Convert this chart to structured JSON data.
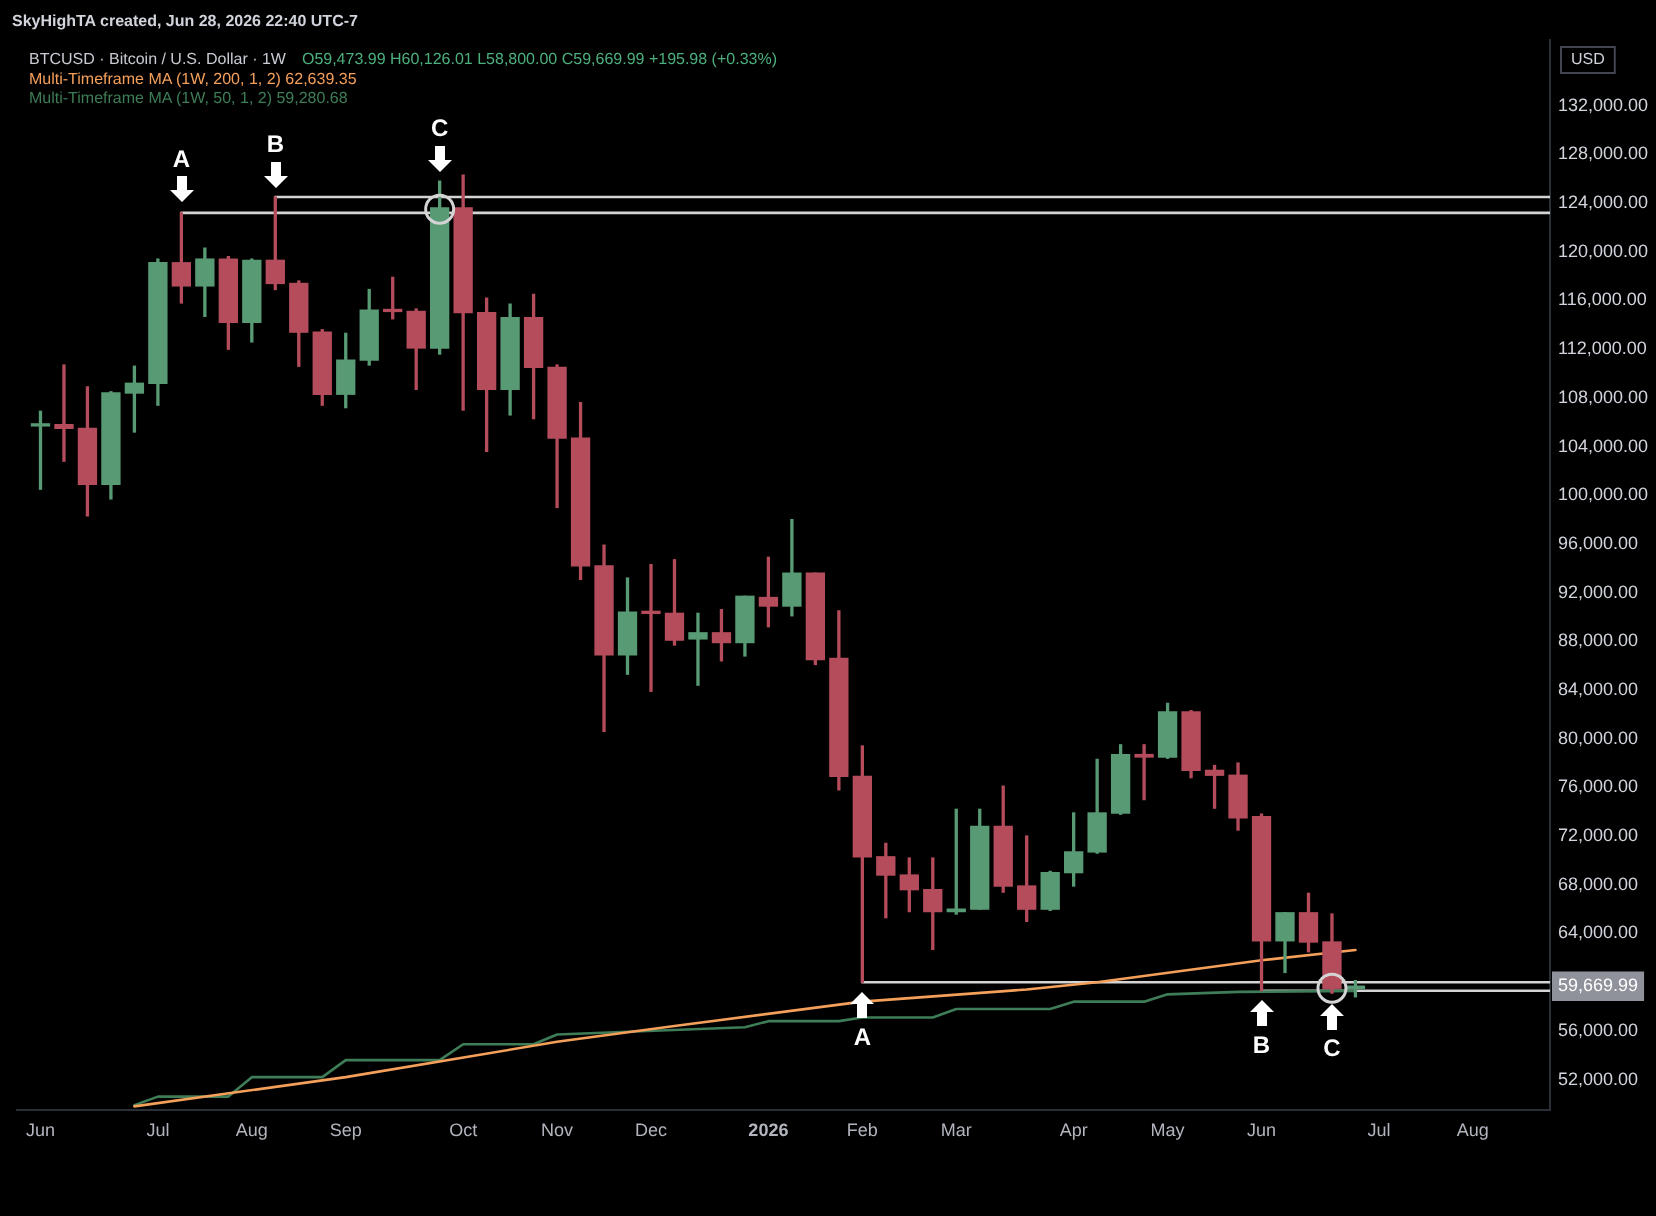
{
  "chart_data": {
    "type": "candlestick",
    "title": "BTCUSD · Bitcoin / U.S. Dollar · 1W",
    "subtitle": "O59,473.99 H60,126.01 L58,800.00 C59,669.99 +195.98 (+0.33%)",
    "ylabel": "USD",
    "annotations": [
      "SkyHighTA created, Jun 28, 2026 22:40 UTC-7",
      {
        "text": "A",
        "x": "2025-07-14",
        "y": 123200
      },
      {
        "text": "B",
        "x": "2025-08-11",
        "y": 124500
      },
      {
        "text": "C",
        "x": "2025-09-29",
        "y": 125800
      },
      {
        "text": "A",
        "x": "2026-02-02",
        "y": 60000
      },
      {
        "text": "B",
        "x": "2026-06-01",
        "y": 59300
      },
      {
        "text": "C",
        "x": "2026-06-22",
        "y": 59100
      }
    ],
    "x": [
      "2025-06-02",
      "2025-06-09",
      "2025-06-16",
      "2025-06-23",
      "2025-06-30",
      "2025-07-07",
      "2025-07-14",
      "2025-07-21",
      "2025-07-28",
      "2025-08-04",
      "2025-08-11",
      "2025-08-18",
      "2025-08-25",
      "2025-09-01",
      "2025-09-08",
      "2025-09-15",
      "2025-09-22",
      "2025-09-29",
      "2025-10-06",
      "2025-10-13",
      "2025-10-20",
      "2025-10-27",
      "2025-11-03",
      "2025-11-10",
      "2025-11-17",
      "2025-11-24",
      "2025-12-01",
      "2025-12-08",
      "2025-12-15",
      "2025-12-22",
      "2025-12-29",
      "2026-01-05",
      "2026-01-12",
      "2026-01-19",
      "2026-01-26",
      "2026-02-02",
      "2026-02-09",
      "2026-02-16",
      "2026-02-23",
      "2026-03-02",
      "2026-03-09",
      "2026-03-16",
      "2026-03-23",
      "2026-03-30",
      "2026-04-06",
      "2026-04-13",
      "2026-04-20",
      "2026-04-27",
      "2026-05-04",
      "2026-05-11",
      "2026-05-18",
      "2026-05-25",
      "2026-06-01",
      "2026-06-08",
      "2026-06-15",
      "2026-06-22",
      "2026-06-29"
    ],
    "ohlc": [
      [
        105700,
        106900,
        100500,
        105800
      ],
      [
        105800,
        110700,
        102800,
        105500
      ],
      [
        105500,
        108900,
        98300,
        100900
      ],
      [
        100900,
        108500,
        99700,
        108400
      ],
      [
        108400,
        110600,
        105200,
        109200
      ],
      [
        109200,
        119400,
        107400,
        119100
      ],
      [
        119100,
        123200,
        115800,
        117200
      ],
      [
        117200,
        120300,
        114700,
        119400
      ],
      [
        119400,
        119600,
        112000,
        114200
      ],
      [
        114200,
        119400,
        112600,
        119300
      ],
      [
        119300,
        124500,
        116900,
        117400
      ],
      [
        117400,
        117600,
        110600,
        113400
      ],
      [
        113400,
        113600,
        107400,
        108300
      ],
      [
        108300,
        113300,
        107200,
        111100
      ],
      [
        111100,
        116900,
        110700,
        115200
      ],
      [
        115200,
        117900,
        114500,
        115100
      ],
      [
        115100,
        115300,
        108700,
        112100
      ],
      [
        112100,
        125800,
        111600,
        123600
      ],
      [
        123600,
        126300,
        107000,
        115000
      ],
      [
        115000,
        116200,
        103600,
        108700
      ],
      [
        108700,
        115700,
        106600,
        114600
      ],
      [
        114600,
        116500,
        106300,
        110500
      ],
      [
        110500,
        110700,
        99000,
        104700
      ],
      [
        104700,
        107600,
        93100,
        94200
      ],
      [
        94200,
        95900,
        80600,
        86900
      ],
      [
        86900,
        93200,
        85300,
        90400
      ],
      [
        90400,
        94300,
        83900,
        90300
      ],
      [
        90300,
        94700,
        87700,
        88100
      ],
      [
        88200,
        90300,
        84400,
        88700
      ],
      [
        88700,
        90600,
        86400,
        87900
      ],
      [
        87900,
        91700,
        86800,
        91700
      ],
      [
        91600,
        94900,
        89200,
        90900
      ],
      [
        90900,
        98000,
        90100,
        93600
      ],
      [
        93600,
        93600,
        86100,
        86500
      ],
      [
        86600,
        90500,
        75800,
        76900
      ],
      [
        76900,
        79400,
        60000,
        70300
      ],
      [
        70300,
        71400,
        65300,
        68800
      ],
      [
        68800,
        70200,
        65800,
        67600
      ],
      [
        67600,
        70200,
        62700,
        65800
      ],
      [
        65800,
        74200,
        65600,
        66000
      ],
      [
        66000,
        74200,
        66000,
        72800
      ],
      [
        72800,
        76100,
        67400,
        67900
      ],
      [
        67900,
        72000,
        65000,
        66000
      ],
      [
        66000,
        69100,
        65900,
        69000
      ],
      [
        69000,
        73900,
        67900,
        70700
      ],
      [
        70700,
        78300,
        70600,
        73900
      ],
      [
        73900,
        79500,
        73800,
        78700
      ],
      [
        78700,
        79500,
        75000,
        78500
      ],
      [
        78500,
        82900,
        78400,
        82200
      ],
      [
        82200,
        82300,
        76800,
        77400
      ],
      [
        77400,
        77800,
        74300,
        77000
      ],
      [
        77000,
        78000,
        72500,
        73500
      ],
      [
        73600,
        73800,
        59300,
        63400
      ],
      [
        63400,
        65700,
        60800,
        65700
      ],
      [
        65700,
        67300,
        62500,
        63300
      ],
      [
        63300,
        65600,
        59100,
        59500
      ],
      [
        59473.99,
        60126.01,
        58800.0,
        59669.99
      ]
    ],
    "colors": [
      "#579a74",
      "#b54c5c",
      "#b54c5c",
      "#579a74",
      "#579a74",
      "#579a74",
      "#b54c5c",
      "#579a74",
      "#b54c5c",
      "#579a74",
      "#b54c5c",
      "#b54c5c",
      "#b54c5c",
      "#579a74",
      "#579a74",
      "#b54c5c",
      "#b54c5c",
      "#579a74",
      "#b54c5c",
      "#b54c5c",
      "#579a74",
      "#b54c5c",
      "#b54c5c",
      "#b54c5c",
      "#b54c5c",
      "#579a74",
      "#b54c5c",
      "#b54c5c",
      "#579a74",
      "#b54c5c",
      "#579a74",
      "#b54c5c",
      "#579a74",
      "#b54c5c",
      "#b54c5c",
      "#b54c5c",
      "#b54c5c",
      "#b54c5c",
      "#b54c5c",
      "#579a74",
      "#579a74",
      "#b54c5c",
      "#b54c5c",
      "#579a74",
      "#579a74",
      "#579a74",
      "#579a74",
      "#b54c5c",
      "#579a74",
      "#b54c5c",
      "#b54c5c",
      "#b54c5c",
      "#b54c5c",
      "#579a74",
      "#b54c5c",
      "#b54c5c",
      "#579a74"
    ],
    "series": [
      {
        "name": "Multi-Timeframe MA (1W, 200, 1, 2) 62,639.35",
        "type": "line",
        "color": "#f5a05a",
        "x": [
          "2025-06-30",
          "2025-09-01",
          "2025-11-03",
          "2025-12-08",
          "2026-02-02",
          "2026-03-23",
          "2026-04-13",
          "2026-06-01",
          "2026-06-29"
        ],
        "values": [
          49800,
          52200,
          55100,
          56400,
          58400,
          59400,
          60000,
          61800,
          62639.35
        ]
      },
      {
        "name": "Multi-Timeframe MA (1W, 50, 1, 2) 59,280.68",
        "type": "line",
        "color": "#3e7d57",
        "x": [
          "2025-06-30",
          "2025-07-07",
          "2025-07-28",
          "2025-08-04",
          "2025-08-25",
          "2025-09-01",
          "2025-09-29",
          "2025-10-06",
          "2025-10-27",
          "2025-11-03",
          "2025-12-29",
          "2026-01-05",
          "2026-01-26",
          "2026-02-02",
          "2026-02-23",
          "2026-03-02",
          "2026-03-30",
          "2026-04-06",
          "2026-04-27",
          "2026-05-04",
          "2026-05-25",
          "2026-06-29"
        ],
        "values": [
          49900,
          50600,
          50600,
          52200,
          52200,
          53600,
          53600,
          54900,
          54900,
          55700,
          56300,
          56800,
          56800,
          57100,
          57100,
          57800,
          57800,
          58400,
          58400,
          59000,
          59200,
          59280.68
        ]
      },
      {
        "type": "line",
        "color": "#d4d4d4",
        "x": [
          "2025-07-14",
          "2026-08-26"
        ],
        "values": [
          123200,
          123200
        ]
      },
      {
        "type": "line",
        "color": "#d4d4d4",
        "x": [
          "2025-08-11",
          "2026-08-26"
        ],
        "values": [
          124500,
          124500
        ]
      },
      {
        "type": "line",
        "color": "#d4d4d4",
        "x": [
          "2026-02-02",
          "2026-08-26"
        ],
        "values": [
          60000,
          60000
        ]
      },
      {
        "type": "line",
        "color": "#d4d4d4",
        "x": [
          "2026-06-01",
          "2026-08-26"
        ],
        "values": [
          59300,
          59300
        ]
      },
      {
        "type": "scatter",
        "color": "#d4d4d4",
        "marker": "circle",
        "x": [
          "2025-09-29",
          "2026-06-22"
        ],
        "values": [
          123500,
          59500
        ]
      }
    ],
    "xlim": [
      "2025-05-26",
      "2026-08-26"
    ],
    "xticks": [
      {
        "value": "2025-06-02",
        "label": "Jun"
      },
      {
        "value": "2025-07-07",
        "label": "Jul"
      },
      {
        "value": "2025-08-04",
        "label": "Aug"
      },
      {
        "value": "2025-09-01",
        "label": "Sep"
      },
      {
        "value": "2025-10-06",
        "label": "Oct"
      },
      {
        "value": "2025-11-03",
        "label": "Nov"
      },
      {
        "value": "2025-12-01",
        "label": "Dec"
      },
      {
        "value": "2026-01-05",
        "label": "2026"
      },
      {
        "value": "2026-02-02",
        "label": "Feb"
      },
      {
        "value": "2026-03-02",
        "label": "Mar"
      },
      {
        "value": "2026-04-06",
        "label": "Apr"
      },
      {
        "value": "2026-05-04",
        "label": "May"
      },
      {
        "value": "2026-06-01",
        "label": "Jun"
      },
      {
        "value": "2026-07-06",
        "label": "Jul"
      },
      {
        "value": "2026-08-03",
        "label": "Aug"
      }
    ],
    "ylim": [
      49500,
      137400
    ],
    "yticks": [
      {
        "value": 52000,
        "label": "52,000.00"
      },
      {
        "value": 56000,
        "label": "56,000.00"
      },
      {
        "value": 59669.99,
        "label": "59,669.99"
      },
      {
        "value": 64000,
        "label": "64,000.00"
      },
      {
        "value": 68000,
        "label": "68,000.00"
      },
      {
        "value": 72000,
        "label": "72,000.00"
      },
      {
        "value": 76000,
        "label": "76,000.00"
      },
      {
        "value": 80000,
        "label": "80,000.00"
      },
      {
        "value": 84000,
        "label": "84,000.00"
      },
      {
        "value": 88000,
        "label": "88,000.00"
      },
      {
        "value": 92000,
        "label": "92,000.00"
      },
      {
        "value": 96000,
        "label": "96,000.00"
      },
      {
        "value": 100000,
        "label": "100,000.00"
      },
      {
        "value": 104000,
        "label": "104,000.00"
      },
      {
        "value": 108000,
        "label": "108,000.00"
      },
      {
        "value": 112000,
        "label": "112,000.00"
      },
      {
        "value": 116000,
        "label": "116,000.00"
      },
      {
        "value": 120000,
        "label": "120,000.00"
      },
      {
        "value": 124000,
        "label": "124,000.00"
      },
      {
        "value": 128000,
        "label": "128,000.00"
      },
      {
        "value": 132000,
        "label": "132,000.00"
      }
    ],
    "grid": false,
    "legend": "top left"
  }
}
